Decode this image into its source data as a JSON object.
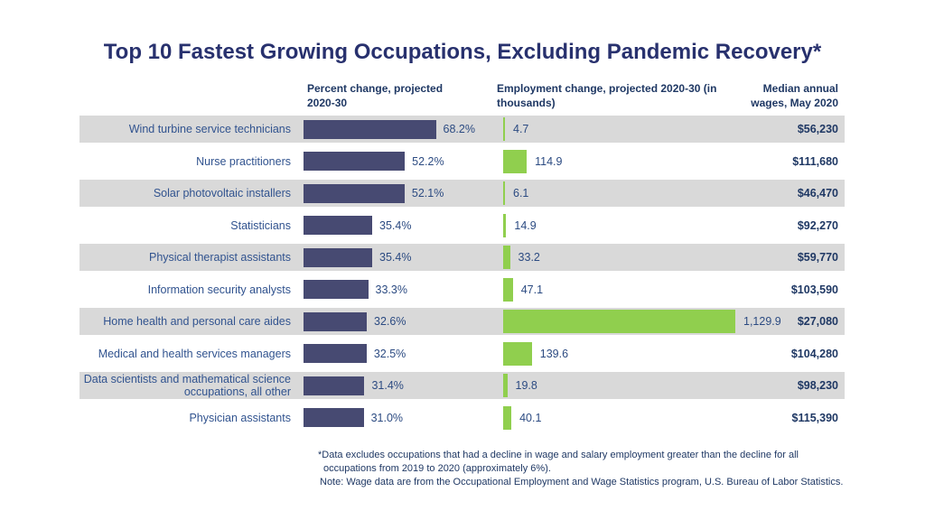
{
  "title": "Top 10 Fastest Growing Occupations, Excluding Pandemic Recovery*",
  "columns": {
    "percent": "Percent change, projected 2020-30",
    "employment": "Employment change, projected 2020-30 (in thousands)",
    "wages": "Median annual wages, May 2020"
  },
  "chart_data": {
    "type": "bar",
    "orientation": "horizontal",
    "title": "Top 10 Fastest Growing Occupations, Excluding Pandemic Recovery*",
    "categories": [
      "Wind turbine service technicians",
      "Nurse practitioners",
      "Solar photovoltaic installers",
      "Statisticians",
      "Physical therapist assistants",
      "Information security analysts",
      "Home health and personal care aides",
      "Medical and health services managers",
      "Data scientists and mathematical science occupations, all other",
      "Physician assistants"
    ],
    "series": [
      {
        "name": "Percent change, projected 2020-30",
        "unit": "percent",
        "color": "#474a72",
        "values": [
          68.2,
          52.2,
          52.1,
          35.4,
          35.4,
          33.3,
          32.6,
          32.5,
          31.4,
          31.0
        ],
        "labels": [
          "68.2%",
          "52.2%",
          "52.1%",
          "35.4%",
          "35.4%",
          "33.3%",
          "32.6%",
          "32.5%",
          "31.4%",
          "31.0%"
        ]
      },
      {
        "name": "Employment change, projected 2020-30 (in thousands)",
        "unit": "thousands",
        "color": "#90cf4e",
        "values": [
          4.7,
          114.9,
          6.1,
          14.9,
          33.2,
          47.1,
          1129.9,
          139.6,
          19.8,
          40.1
        ],
        "labels": [
          "4.7",
          "114.9",
          "6.1",
          "14.9",
          "33.2",
          "47.1",
          "1,129.9",
          "139.6",
          "19.8",
          "40.1"
        ]
      },
      {
        "name": "Median annual wages, May 2020",
        "unit": "USD",
        "values": [
          56230,
          111680,
          46470,
          92270,
          59770,
          103590,
          27080,
          104280,
          98230,
          115390
        ],
        "labels": [
          "$56,230",
          "$111,680",
          "$46,470",
          "$92,270",
          "$59,770",
          "$103,590",
          "$27,080",
          "$104,280",
          "$98,230",
          "$115,390"
        ]
      }
    ],
    "legend_position": "none",
    "grid": false,
    "row_stripe_colors": [
      "#d9d9d9",
      "#ffffff"
    ]
  },
  "footnote": {
    "line1": "*Data excludes occupations that had a decline in wage and salary employment greater than the decline for all",
    "line2": "occupations from 2019 to 2020 (approximately 6%).",
    "line3": "Note: Wage data are from the Occupational Employment and Wage Statistics program, U.S. Bureau of Labor Statistics."
  },
  "colors": {
    "title_text": "#28316e",
    "header_text": "#1f3864",
    "label_text": "#31538f",
    "value_text": "#2c4b82",
    "wage_text": "#1f3864",
    "percent_bar": "#474a72",
    "employment_bar": "#90cf4e",
    "stripe": "#d9d9d9",
    "background": "#ffffff"
  }
}
